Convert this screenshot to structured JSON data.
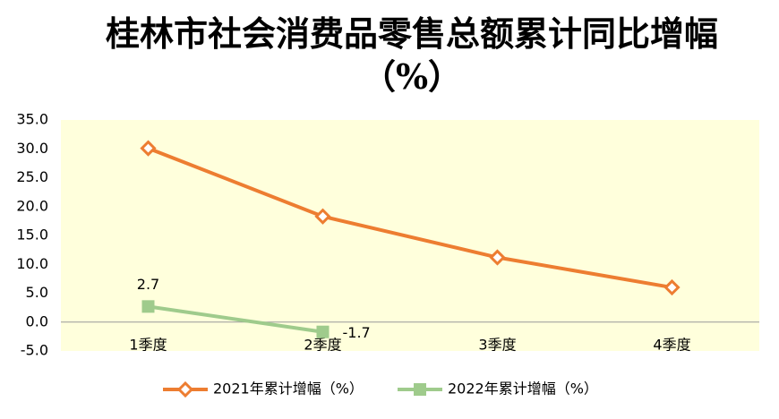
{
  "chart_data": {
    "type": "line",
    "title": "桂林市社会消费品零售总额累计同比增幅（%）",
    "categories": [
      "1季度",
      "2季度",
      "3季度",
      "4季度"
    ],
    "series": [
      {
        "name": "2021年累计增幅（%）",
        "color": "#ed7d31",
        "marker": "diamond",
        "values": [
          30.1,
          18.3,
          11.2,
          6.0
        ]
      },
      {
        "name": "2022年累计增幅（%）",
        "color": "#9fcb8c",
        "marker": "square",
        "values": [
          2.7,
          -1.7,
          null,
          null
        ],
        "data_labels": true
      }
    ],
    "ylim": [
      -5,
      35
    ],
    "yticks": [
      {
        "value": -5,
        "label": "-5.0"
      },
      {
        "value": 0,
        "label": "0.0"
      },
      {
        "value": 5,
        "label": "5.0"
      },
      {
        "value": 10,
        "label": "10.0"
      },
      {
        "value": 15,
        "label": "15.0"
      },
      {
        "value": 20,
        "label": "20.0"
      },
      {
        "value": 25,
        "label": "25.0"
      },
      {
        "value": 30,
        "label": "30.0"
      },
      {
        "value": 35,
        "label": "35.0"
      }
    ],
    "grid": false,
    "legend": "bottom",
    "plot_background": "#ffffdc"
  }
}
